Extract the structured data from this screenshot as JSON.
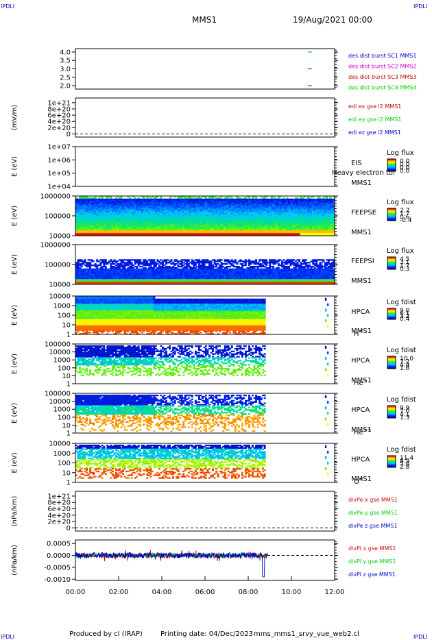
{
  "header": {
    "corner_tl": "IPDLI",
    "corner_tr": "IPDLI",
    "corner_bl": "IPDLI",
    "corner_br": "IPDLI",
    "spacecraft": "MMS1",
    "date": "19/Aug/2021 00:00"
  },
  "footer": {
    "produced": "Produced by cl (IRAP)",
    "printed": "Printing date: 04/Dec/2023",
    "script": "mms_mms1_srvy_vue_web2.cl"
  },
  "colors": {
    "red": "#cc0000",
    "green": "#00cc00",
    "blue": "#0000cc",
    "magenta": "#cc00cc"
  },
  "chart_data": {
    "type": "multi-panel-timeseries",
    "x": {
      "ticks": [
        "00:00",
        "02:00",
        "04:00",
        "06:00",
        "08:00",
        "10:00",
        "12:00"
      ],
      "range_hours": [
        0,
        12
      ]
    },
    "panels": [
      {
        "id": "burst",
        "kind": "line",
        "ylabel": "",
        "yticks": [
          "4.0",
          "3.5",
          "3.0",
          "2.5",
          "2.0"
        ],
        "ytick_values": [
          4.0,
          3.5,
          3.0,
          2.5,
          2.0
        ],
        "ylim": [
          1.8,
          4.2
        ],
        "series": [
          {
            "name": "des dist burst SC1 MMS1",
            "color": "#0000cc",
            "points": []
          },
          {
            "name": "des dist burst SC2 MMS2",
            "color": "#cc00cc",
            "points": [
              [
                10.85,
                2.0
              ]
            ]
          },
          {
            "name": "des dist burst SC3 MMS3",
            "color": "#cc0000",
            "points": [
              [
                10.85,
                3.0
              ]
            ]
          },
          {
            "name": "des dist burst SC4 MMS4",
            "color": "#00cc00",
            "points": [
              [
                10.85,
                4.0
              ]
            ]
          }
        ]
      },
      {
        "id": "edi",
        "kind": "line",
        "ylabel": "(mV/m)",
        "yticks": [
          "1e+21",
          "8e+20",
          "6e+20",
          "4e+20",
          "2e+20",
          "0"
        ],
        "ytick_values": [
          1e+21,
          8e+20,
          6e+20,
          4e+20,
          2e+20,
          0
        ],
        "ylim": [
          -1e+20,
          1.15e+21
        ],
        "zero_line": true,
        "series": [
          {
            "name": "edi ex gse l2 MMS1",
            "color": "#cc0000"
          },
          {
            "name": "edi ey gse l2 MMS1",
            "color": "#00cc00"
          },
          {
            "name": "edi ez gse l2 MMS1",
            "color": "#0000cc"
          }
        ]
      },
      {
        "id": "eis",
        "kind": "spectrogram",
        "ylabel": "E (eV)",
        "yticks": [
          "1e+07",
          "1e+06",
          "1e+05",
          "1e+04"
        ],
        "ylog": [
          4,
          7
        ],
        "instrument": "EIS",
        "extra": "Heavy electron tof",
        "sc": "MMS1",
        "species": "",
        "cbar_title": "Log flux",
        "cbar_ticks": [
          "0.0",
          "0.0",
          "0.0",
          "0.0"
        ],
        "fill": null
      },
      {
        "id": "feepse",
        "kind": "spectrogram",
        "ylabel": "E (eV)",
        "yticks": [
          "1000000",
          "100000",
          "10000"
        ],
        "ylog": [
          4,
          6
        ],
        "instrument": "FEEPSE",
        "sc": "MMS1",
        "species": "",
        "cbar_title": "Log flux",
        "cbar_ticks": [
          "2.7",
          "1.7",
          "0.6",
          "-0.4"
        ],
        "fill": {
          "type": "feeps_e",
          "t": [
            0,
            12
          ]
        }
      },
      {
        "id": "feepsi",
        "kind": "spectrogram",
        "ylabel": "E (eV)",
        "yticks": [
          "1000000",
          "100000",
          "10000"
        ],
        "ylog": [
          4,
          6
        ],
        "instrument": "FEEPSI",
        "sc": "MMS1",
        "species": "",
        "cbar_title": "Log flux",
        "cbar_ticks": [
          "4.5",
          "3.1",
          "1.7",
          "0.3"
        ],
        "fill": {
          "type": "feeps_i",
          "t": [
            0,
            12
          ]
        }
      },
      {
        "id": "hpca_h",
        "kind": "spectrogram",
        "ylabel": "E (eV)",
        "yticks": [
          "10000",
          "1000",
          "100",
          "10",
          "1"
        ],
        "ylog": [
          0,
          4.6
        ],
        "instrument": "HPCA",
        "sc": "MMS1",
        "species": "H",
        "species_sup": "+",
        "cbar_title": "Log fdist",
        "cbar_ticks": [
          "9.0",
          "6.1",
          "3.2",
          "0.4"
        ],
        "fill": {
          "type": "hpca_h",
          "t": [
            0,
            8.85
          ]
        }
      },
      {
        "id": "hpca_he",
        "kind": "spectrogram",
        "ylabel": "E (eV)",
        "yticks": [
          "100000",
          "10000",
          "1000",
          "100",
          "10",
          "1"
        ],
        "ylog": [
          0,
          5
        ],
        "instrument": "HPCA",
        "sc": "MMS1",
        "species": "He",
        "species_sup": "+",
        "cbar_title": "Log fdist",
        "cbar_ticks": [
          "10.0",
          "7.2",
          "4.4",
          "1.6"
        ],
        "fill": {
          "type": "hpca_he",
          "t": [
            0,
            8.85
          ]
        }
      },
      {
        "id": "hpca_he2",
        "kind": "spectrogram",
        "ylabel": "E (eV)",
        "yticks": [
          "100000",
          "10000",
          "1000",
          "100",
          "10",
          "1"
        ],
        "ylog": [
          0,
          5
        ],
        "instrument": "HPCA",
        "sc": "MMS1",
        "species": "He",
        "species_sup": "++",
        "cbar_title": "Log fdist",
        "cbar_ticks": [
          "9.9",
          "7.0",
          "4.1",
          "1.3"
        ],
        "fill": {
          "type": "hpca_he2",
          "t": [
            0,
            8.85
          ]
        }
      },
      {
        "id": "hpca_o",
        "kind": "spectrogram",
        "ylabel": "E (eV)",
        "yticks": [
          "10000",
          "1000",
          "100",
          "10",
          "1"
        ],
        "ylog": [
          0,
          4.6
        ],
        "instrument": "HPCA",
        "sc": "MMS1",
        "species": "O",
        "species_sup": "+",
        "cbar_title": "Log fdist",
        "cbar_ticks": [
          "11.4",
          "8.5",
          "5.6",
          "2.8"
        ],
        "fill": {
          "type": "hpca_o",
          "t": [
            0,
            8.85
          ]
        }
      },
      {
        "id": "divpe",
        "kind": "line",
        "ylabel": "(nPa/km)",
        "yticks": [
          "1e+21",
          "8e+20",
          "6e+20",
          "4e+20",
          "2e+20",
          "0"
        ],
        "ytick_values": [
          1e+21,
          8e+20,
          6e+20,
          4e+20,
          2e+20,
          0
        ],
        "ylim": [
          -1e+20,
          1.15e+21
        ],
        "zero_line": true,
        "series": [
          {
            "name": "divPe x gse MMS1",
            "color": "#cc0000"
          },
          {
            "name": "divPe y gse MMS1",
            "color": "#00cc00"
          },
          {
            "name": "divPe z gse MMS1",
            "color": "#0000cc"
          }
        ]
      },
      {
        "id": "divpi",
        "kind": "line",
        "ylabel": "(nPa/km)",
        "yticks": [
          "0.0005",
          "0.0000",
          "-0.0005",
          "-0.0010"
        ],
        "ytick_values": [
          0.0005,
          0,
          -0.0005,
          -0.001
        ],
        "ylim": [
          -0.00105,
          0.00065
        ],
        "zero_line": true,
        "series": [
          {
            "name": "divPi x gse MMS1",
            "color": "#cc0000",
            "t": [
              0,
              8.9
            ],
            "amp": 0.0001
          },
          {
            "name": "divPi y gse MMS1",
            "color": "#00cc00",
            "t": [
              0,
              8.9
            ],
            "amp": 8e-05
          },
          {
            "name": "divPi z gse MMS1",
            "color": "#0000cc",
            "t": [
              0,
              8.9
            ],
            "amp": 0.00012
          }
        ]
      }
    ]
  }
}
